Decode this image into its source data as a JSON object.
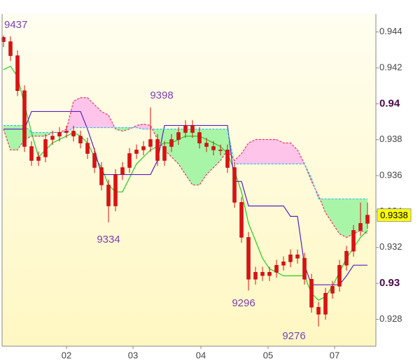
{
  "chart_data": {
    "type": "candlestick",
    "x": [
      0,
      1,
      2,
      3,
      4,
      5,
      6,
      7,
      8,
      9,
      10,
      11,
      12,
      13,
      14,
      15,
      16,
      17,
      18,
      19,
      20,
      21,
      22,
      23,
      24,
      25,
      26,
      27,
      28,
      29,
      30,
      31,
      32,
      33,
      34,
      35,
      36,
      37,
      38,
      39,
      40,
      41,
      42,
      43,
      44,
      45,
      46,
      47,
      48,
      49,
      50,
      51,
      52
    ],
    "open": [
      0.9437,
      0.94346,
      0.94268,
      0.94073,
      0.93762,
      0.93684,
      0.93704,
      0.93801,
      0.9382,
      0.9384,
      0.93848,
      0.9382,
      0.93781,
      0.93723,
      0.93645,
      0.93548,
      0.93431,
      0.93606,
      0.93645,
      0.93723,
      0.93743,
      0.93762,
      0.93801,
      0.93684,
      0.93762,
      0.93801,
      0.9384,
      0.93879,
      0.9384,
      0.93781,
      0.93762,
      0.93743,
      0.93743,
      0.93645,
      0.93451,
      0.93256,
      0.93023,
      0.93062,
      0.93043,
      0.93062,
      0.93101,
      0.9312,
      0.93159,
      0.9314,
      0.93023,
      0.92867,
      0.92828,
      0.92945,
      0.92984,
      0.93101,
      0.93179,
      0.93295,
      0.93334
    ],
    "high": [
      0.9438,
      0.94376,
      0.94298,
      0.94103,
      0.93792,
      0.93734,
      0.93831,
      0.9385,
      0.9387,
      0.93878,
      0.93878,
      0.9385,
      0.93811,
      0.93753,
      0.93675,
      0.93578,
      0.93636,
      0.93675,
      0.93753,
      0.93773,
      0.93792,
      0.9398,
      0.93831,
      0.93792,
      0.93831,
      0.9387,
      0.93909,
      0.93909,
      0.9387,
      0.93811,
      0.93792,
      0.93773,
      0.93773,
      0.93675,
      0.93481,
      0.93286,
      0.93092,
      0.93092,
      0.93092,
      0.93131,
      0.9315,
      0.93189,
      0.93189,
      0.9317,
      0.93053,
      0.92897,
      0.92975,
      0.93014,
      0.93131,
      0.93209,
      0.93325,
      0.9345,
      0.9345
    ],
    "low": [
      0.94316,
      0.94238,
      0.94043,
      0.93732,
      0.93654,
      0.93654,
      0.93674,
      0.93771,
      0.9379,
      0.9381,
      0.9379,
      0.93751,
      0.93693,
      0.93615,
      0.93518,
      0.9334,
      0.93401,
      0.93576,
      0.93615,
      0.93693,
      0.93713,
      0.93732,
      0.93654,
      0.93654,
      0.93732,
      0.93771,
      0.9381,
      0.9381,
      0.93751,
      0.93732,
      0.93713,
      0.93713,
      0.93615,
      0.93421,
      0.93226,
      0.9296,
      0.92993,
      0.93013,
      0.93013,
      0.93032,
      0.93071,
      0.9309,
      0.9311,
      0.92993,
      0.92837,
      0.9276,
      0.92798,
      0.92915,
      0.92954,
      0.93071,
      0.93149,
      0.93265,
      0.93304
    ],
    "close": [
      0.94346,
      0.94268,
      0.94073,
      0.93762,
      0.93684,
      0.93704,
      0.93801,
      0.9382,
      0.9384,
      0.93848,
      0.9382,
      0.93781,
      0.93723,
      0.93645,
      0.93548,
      0.93431,
      0.93606,
      0.93645,
      0.93723,
      0.93743,
      0.93762,
      0.93801,
      0.93684,
      0.93762,
      0.93801,
      0.9384,
      0.93879,
      0.9384,
      0.93781,
      0.93762,
      0.93743,
      0.93743,
      0.93645,
      0.93451,
      0.93256,
      0.93023,
      0.93062,
      0.93043,
      0.93062,
      0.93101,
      0.9312,
      0.93159,
      0.9314,
      0.93023,
      0.92867,
      0.92828,
      0.92945,
      0.92984,
      0.93101,
      0.93179,
      0.93295,
      0.93334,
      0.9338
    ],
    "candle_color": "#dd1111",
    "series": [
      {
        "color": "#22cc22",
        "dash": false,
        "values": [
          0.9419,
          0.94209,
          0.94151,
          0.93995,
          0.9384,
          0.93704,
          0.93743,
          0.93782,
          0.93801,
          0.9382,
          0.9384,
          0.9382,
          0.93782,
          0.93704,
          0.93645,
          0.93548,
          0.93509,
          0.93509,
          0.93587,
          0.93665,
          0.93704,
          0.93743,
          0.93762,
          0.93782,
          0.93782,
          0.93801,
          0.9382,
          0.9382,
          0.9382,
          0.93801,
          0.93782,
          0.93762,
          0.93723,
          0.93626,
          0.93509,
          0.93334,
          0.93237,
          0.9314,
          0.93081,
          0.93062,
          0.93042,
          0.93042,
          0.93042,
          0.93042,
          0.92945,
          0.92906,
          0.92926,
          0.92984,
          0.93062,
          0.9314,
          0.93198,
          0.93256,
          0.93295
        ]
      },
      {
        "color": "#5a1ec8",
        "dash": false,
        "values": [
          0.93859,
          0.93859,
          0.93859,
          0.93859,
          0.93957,
          0.93957,
          0.93957,
          0.93957,
          0.93957,
          0.93957,
          0.93957,
          0.93957,
          0.93859,
          0.93743,
          0.93606,
          0.93606,
          0.93606,
          0.93606,
          0.93606,
          0.93606,
          0.93606,
          0.93606,
          0.93684,
          0.93879,
          0.93879,
          0.93879,
          0.93879,
          0.93879,
          0.93879,
          0.93879,
          0.93879,
          0.93879,
          0.93879,
          0.93568,
          0.93568,
          0.93431,
          0.93431,
          0.93431,
          0.93431,
          0.93431,
          0.93431,
          0.93373,
          0.93373,
          0.93101,
          0.92992,
          0.92992,
          0.92992,
          0.92992,
          0.92992,
          0.93042,
          0.93101,
          0.93101,
          0.93101
        ]
      },
      {
        "color": "#ee3366",
        "dash": true,
        "values": [
          0.93859,
          0.93743,
          0.93743,
          0.93801,
          0.9382,
          0.9382,
          0.9382,
          0.9384,
          0.9384,
          0.93859,
          0.94015,
          0.94034,
          0.94034,
          0.93995,
          0.93957,
          0.93937,
          0.93859,
          0.93848,
          0.93859,
          0.93879,
          0.93887,
          0.93879,
          0.93801,
          0.93743,
          0.93704,
          0.93665,
          0.93606,
          0.93548,
          0.93548,
          0.93606,
          0.93645,
          0.93684,
          0.93743,
          0.93684,
          0.93723,
          0.93782,
          0.93801,
          0.93801,
          0.93801,
          0.93801,
          0.93782,
          0.93782,
          0.93743,
          0.93665,
          0.93568,
          0.9349,
          0.93393,
          0.93334,
          0.93276,
          0.93256,
          0.93276,
          0.93295,
          0.93276
        ]
      },
      {
        "color": "#33bbee",
        "dash": true,
        "values": [
          0.93879,
          0.93879,
          0.93879,
          0.93879,
          0.9384,
          0.9384,
          0.9384,
          0.9384,
          0.9384,
          0.9384,
          0.93867,
          0.93867,
          0.93867,
          0.93867,
          0.93867,
          0.93867,
          0.93867,
          0.93867,
          0.93867,
          0.93867,
          0.93859,
          0.93859,
          0.93859,
          0.93859,
          0.93859,
          0.93859,
          0.93859,
          0.93859,
          0.93859,
          0.93859,
          0.93859,
          0.93859,
          0.93859,
          0.93665,
          0.93665,
          0.93665,
          0.93665,
          0.93665,
          0.93665,
          0.93665,
          0.93665,
          0.93665,
          0.93665,
          0.93665,
          0.93587,
          0.9347,
          0.9347,
          0.9347,
          0.9347,
          0.9347,
          0.9347,
          0.9347,
          0.9347
        ]
      }
    ],
    "cloud_colors": [
      "#ffc4ea",
      "#a8f5a8"
    ],
    "last_price_color": "#ffff00",
    "xlim": [
      -0.2,
      53.2
    ],
    "ylim": [
      0.9265,
      0.945
    ],
    "yticks": [
      0.928,
      0.93,
      0.932,
      0.934,
      0.936,
      0.938,
      0.94,
      0.942,
      0.944
    ],
    "xticks": [
      {
        "value": 9,
        "label": "02"
      },
      {
        "value": 18.5,
        "label": "03"
      },
      {
        "value": 28.2,
        "label": "04"
      },
      {
        "value": 37.8,
        "label": "05"
      },
      {
        "value": 47.3,
        "label": "07"
      }
    ],
    "annotations": [
      "9437",
      "9398",
      "9334",
      "9296",
      "9276"
    ]
  }
}
